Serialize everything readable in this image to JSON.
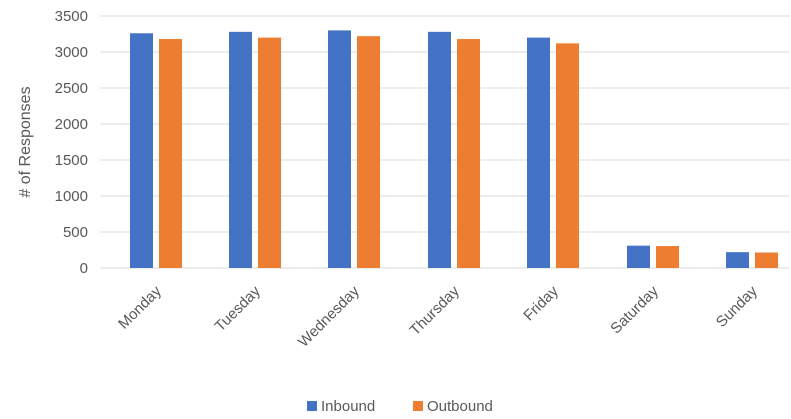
{
  "chart_data": {
    "type": "bar",
    "categories": [
      "Monday",
      "Tuesday",
      "Wednesday",
      "Thursday",
      "Friday",
      "Saturday",
      "Sunday"
    ],
    "series": [
      {
        "name": "Inbound",
        "color": "#4472C4",
        "values": [
          3260,
          3280,
          3300,
          3280,
          3200,
          310,
          220
        ]
      },
      {
        "name": "Outbound",
        "color": "#ED7D31",
        "values": [
          3180,
          3200,
          3220,
          3180,
          3120,
          305,
          215
        ]
      }
    ],
    "title": "",
    "xlabel": "",
    "ylabel": "# of Responses",
    "ylim": [
      0,
      3500
    ],
    "yticks": [
      0,
      500,
      1000,
      1500,
      2000,
      2500,
      3000,
      3500
    ],
    "grid": true,
    "legend_position": "bottom"
  }
}
